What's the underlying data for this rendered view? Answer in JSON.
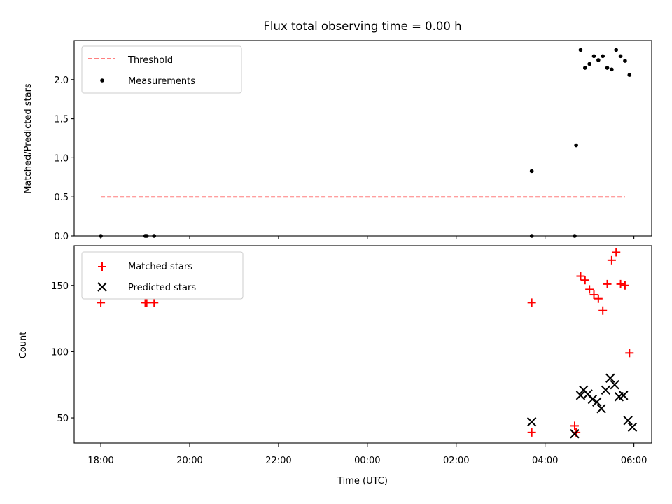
{
  "chart_data": [
    {
      "type": "scatter",
      "title": "Flux total observing time = 0.00 h",
      "xlabel": "",
      "ylabel": "Matched/Predicted stars",
      "ylim": [
        0,
        2.5
      ],
      "yticks": [
        0.0,
        0.5,
        1.0,
        1.5,
        2.0
      ],
      "ytick_labels": [
        "0.0",
        "0.5",
        "1.0",
        "1.5",
        "2.0"
      ],
      "grid": false,
      "legend_position": "top-left",
      "threshold": {
        "name": "Threshold",
        "value": 0.5,
        "x_start": "18:00",
        "x_end": "05:48",
        "color": "#ff7f7f",
        "style": "dashed"
      },
      "series": [
        {
          "name": "Measurements",
          "marker": "dot",
          "color": "#000000",
          "x": [
            "18:00",
            "19:00",
            "19:02",
            "19:12",
            "03:42",
            "03:42",
            "04:40",
            "04:42",
            "04:48",
            "04:54",
            "05:00",
            "05:06",
            "05:12",
            "05:18",
            "05:24",
            "05:30",
            "05:36",
            "05:42",
            "05:48",
            "05:54"
          ],
          "y": [
            0.0,
            0.0,
            0.0,
            0.0,
            0.0,
            0.83,
            0.0,
            1.16,
            2.38,
            2.15,
            2.2,
            2.3,
            2.25,
            2.3,
            2.15,
            2.13,
            2.38,
            2.3,
            2.24,
            2.06
          ]
        }
      ]
    },
    {
      "type": "scatter",
      "title": "",
      "xlabel": "Time (UTC)",
      "ylabel": "Count",
      "ylim": [
        31,
        180
      ],
      "yticks": [
        50,
        100,
        150
      ],
      "ytick_labels": [
        "50",
        "100",
        "150"
      ],
      "xticks": [
        "18:00",
        "20:00",
        "22:00",
        "00:00",
        "02:00",
        "04:00",
        "06:00"
      ],
      "grid": false,
      "legend_position": "top-left",
      "series": [
        {
          "name": "Matched stars",
          "marker": "plus",
          "color": "#ff0000",
          "x": [
            "18:00",
            "19:00",
            "19:02",
            "19:12",
            "03:42",
            "03:42",
            "04:40",
            "04:42",
            "04:48",
            "04:54",
            "05:00",
            "05:06",
            "05:12",
            "05:18",
            "05:24",
            "05:30",
            "05:36",
            "05:42",
            "05:48",
            "05:54"
          ],
          "y": [
            137,
            137,
            137,
            137,
            137,
            39,
            44,
            39,
            157,
            154,
            147,
            143,
            140,
            131,
            151,
            169,
            175,
            151,
            150,
            99
          ]
        },
        {
          "name": "Predicted stars",
          "marker": "x",
          "color": "#000000",
          "x": [
            "03:42",
            "04:40",
            "04:48",
            "04:52",
            "04:58",
            "05:04",
            "05:10",
            "05:16",
            "05:22",
            "05:28",
            "05:34",
            "05:40",
            "05:46",
            "05:52",
            "05:58"
          ],
          "y": [
            47,
            38,
            67,
            71,
            68,
            64,
            62,
            57,
            71,
            80,
            75,
            66,
            67,
            48,
            43
          ]
        }
      ]
    }
  ],
  "time_axis": {
    "start": "17:24",
    "end": "06:24"
  }
}
